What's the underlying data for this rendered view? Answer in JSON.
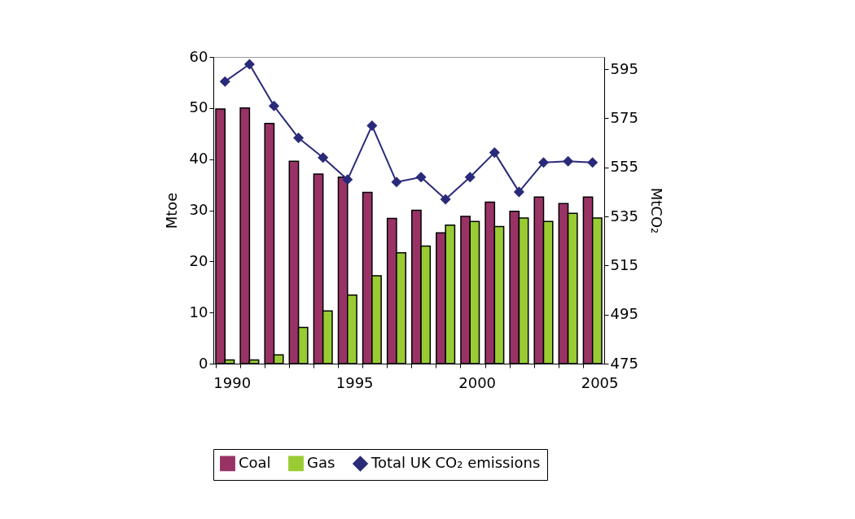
{
  "chart_data": {
    "type": "bar",
    "ylabel": "Mtoe",
    "y2label": "MtCO₂",
    "categories": [
      "1990",
      null,
      null,
      null,
      null,
      "1995",
      null,
      null,
      null,
      null,
      "2000",
      null,
      null,
      null,
      null,
      "2005"
    ],
    "series": [
      {
        "name": "Coal",
        "color": "#993366",
        "values": [
          49.8,
          50.0,
          47.0,
          39.6,
          37.1,
          36.5,
          33.5,
          28.4,
          30.0,
          25.6,
          28.8,
          31.6,
          29.8,
          32.6,
          31.3,
          32.6
        ]
      },
      {
        "name": "Gas",
        "color": "#99cc33",
        "values": [
          0.7,
          0.7,
          1.7,
          7.1,
          10.3,
          13.4,
          17.2,
          21.7,
          23.0,
          27.1,
          27.8,
          26.8,
          28.5,
          27.8,
          29.4,
          28.5
        ]
      },
      {
        "name": "Total UK CO₂ emissions",
        "color": "#2a2a7a",
        "type": "line",
        "axis": "y2",
        "values": [
          590,
          597,
          580,
          567,
          559,
          550,
          572,
          549,
          551,
          542,
          551,
          561,
          545,
          557,
          557.5,
          557
        ]
      }
    ],
    "ylim": [
      0,
      60
    ],
    "yticks": [
      0,
      10,
      20,
      30,
      40,
      50,
      60
    ],
    "y2lim": [
      475,
      600
    ],
    "y2ticks": [
      475,
      495,
      515,
      535,
      555,
      575,
      595
    ],
    "legend": "bottom",
    "marker": "diamond"
  }
}
